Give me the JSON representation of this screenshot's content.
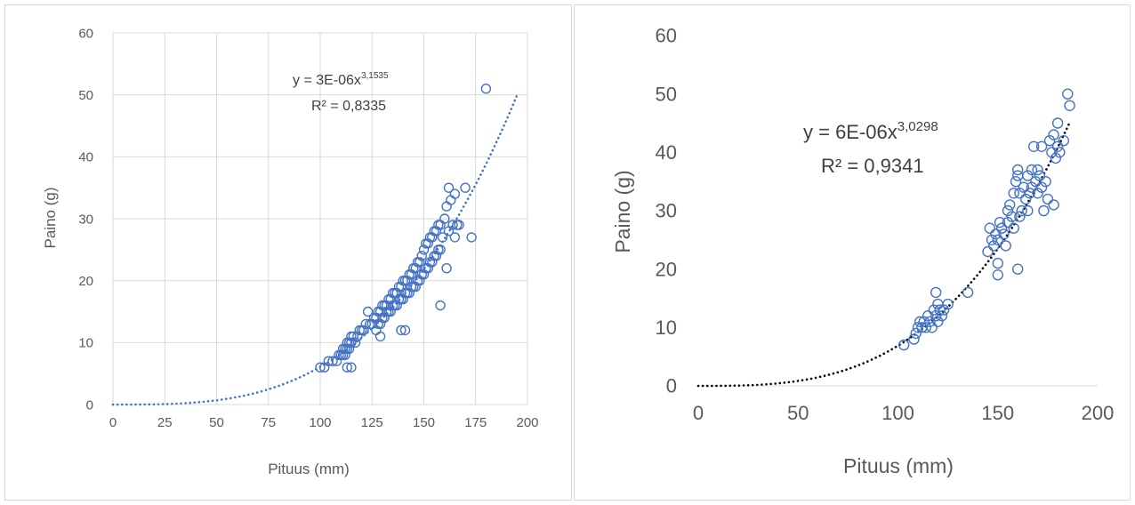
{
  "chart_data": [
    {
      "type": "scatter",
      "title": "",
      "xlabel": "Pituus (mm)",
      "ylabel": "Paino (g)",
      "xlim": [
        0,
        200
      ],
      "ylim": [
        0,
        60
      ],
      "x_ticks": [
        "0",
        "25",
        "50",
        "75",
        "100",
        "125",
        "150",
        "175",
        "200"
      ],
      "y_ticks": [
        "0",
        "10",
        "20",
        "30",
        "40",
        "50",
        "60"
      ],
      "grid": true,
      "legend": "none",
      "marker_color": "#4472c4",
      "trendline": {
        "type": "power",
        "coefficient": 3e-06,
        "exponent": 3.1535,
        "x_range": [
          0,
          195
        ],
        "style": "dotted",
        "color": "#4472c4",
        "equation_prefix": "y = 3E-06x",
        "equation_exponent": "3,1535",
        "r2_label": "R² = 0,8335"
      },
      "series": [
        {
          "x": [
            100,
            102,
            104,
            106,
            108,
            109,
            110,
            111,
            111,
            112,
            112,
            113,
            113,
            114,
            114,
            115,
            115,
            116,
            117,
            118,
            119,
            120,
            121,
            122,
            123,
            124,
            125,
            126,
            127,
            127,
            128,
            128,
            129,
            129,
            130,
            130,
            131,
            131,
            132,
            132,
            133,
            133,
            134,
            134,
            135,
            135,
            136,
            136,
            137,
            137,
            138,
            138,
            139,
            139,
            140,
            140,
            141,
            141,
            142,
            142,
            143,
            143,
            144,
            144,
            145,
            145,
            146,
            146,
            147,
            147,
            148,
            148,
            149,
            149,
            150,
            150,
            151,
            151,
            152,
            152,
            153,
            153,
            154,
            154,
            155,
            155,
            156,
            156,
            157,
            157,
            158,
            158,
            159,
            160,
            161,
            162,
            162,
            163,
            164,
            165,
            166,
            167,
            170,
            173,
            180,
            113,
            115,
            129,
            139,
            141,
            158,
            161,
            165
          ],
          "y": [
            6,
            6,
            7,
            7,
            7,
            8,
            8,
            8,
            9,
            8,
            9,
            9,
            10,
            9,
            10,
            10,
            11,
            11,
            10,
            11,
            12,
            12,
            12,
            13,
            15,
            13,
            13,
            14,
            12,
            14,
            13,
            15,
            13,
            15,
            14,
            16,
            14,
            16,
            15,
            16,
            15,
            17,
            15,
            17,
            16,
            18,
            16,
            18,
            16,
            18,
            17,
            19,
            17,
            19,
            17,
            20,
            18,
            20,
            18,
            20,
            18,
            21,
            19,
            21,
            19,
            22,
            19,
            22,
            20,
            23,
            20,
            23,
            21,
            24,
            21,
            25,
            22,
            26,
            22,
            26,
            23,
            27,
            23,
            27,
            24,
            28,
            24,
            28,
            25,
            29,
            25,
            29,
            27,
            30,
            32,
            35,
            28,
            33,
            29,
            34,
            29,
            29,
            35,
            27,
            51,
            6,
            6,
            11,
            12,
            12,
            16,
            22,
            27
          ]
        }
      ]
    },
    {
      "type": "scatter",
      "title": "",
      "xlabel": "Pituus (mm)",
      "ylabel": "Paino (g)",
      "xlim": [
        0,
        200
      ],
      "ylim": [
        0,
        60
      ],
      "x_ticks": [
        "0",
        "50",
        "100",
        "150",
        "200"
      ],
      "y_ticks": [
        "0",
        "10",
        "20",
        "30",
        "40",
        "50",
        "60"
      ],
      "grid": false,
      "legend": "none",
      "marker_color": "#4472c4",
      "trendline": {
        "type": "power",
        "coefficient": 6e-06,
        "exponent": 3.0298,
        "x_range": [
          0,
          186
        ],
        "style": "dotted",
        "color": "#000000",
        "equation_prefix": "y = 6E-06x",
        "equation_exponent": "3,0298",
        "r2_label": "R² = 0,9341"
      },
      "series": [
        {
          "x": [
            103,
            108,
            109,
            110,
            111,
            112,
            113,
            114,
            115,
            116,
            117,
            118,
            119,
            119,
            120,
            120,
            121,
            122,
            123,
            125,
            135,
            145,
            146,
            147,
            148,
            149,
            150,
            150,
            151,
            152,
            153,
            154,
            155,
            155,
            156,
            157,
            158,
            158,
            159,
            160,
            160,
            161,
            161,
            162,
            163,
            164,
            165,
            165,
            166,
            167,
            167,
            168,
            169,
            170,
            170,
            171,
            172,
            172,
            173,
            174,
            175,
            176,
            177,
            178,
            179,
            180,
            180,
            181,
            183,
            185,
            186,
            160,
            150,
            178
          ],
          "y": [
            7,
            8,
            9,
            10,
            11,
            10,
            11,
            10,
            12,
            11,
            10,
            13,
            12,
            16,
            14,
            11,
            13,
            12,
            13,
            14,
            16,
            23,
            27,
            25,
            24,
            26,
            19,
            25,
            28,
            27,
            26,
            24,
            30,
            28,
            31,
            29,
            27,
            33,
            35,
            36,
            37,
            33,
            29,
            30,
            34,
            32,
            36,
            30,
            33,
            37,
            34,
            41,
            35,
            33,
            37,
            36,
            34,
            41,
            30,
            35,
            32,
            42,
            40,
            43,
            39,
            41,
            45,
            40,
            42,
            50,
            48,
            20,
            21,
            31
          ]
        }
      ]
    }
  ]
}
